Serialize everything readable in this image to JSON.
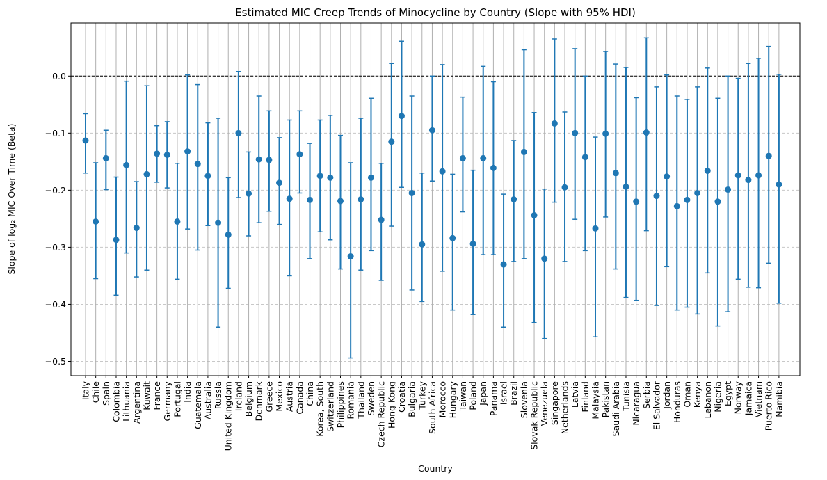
{
  "chart_data": {
    "type": "errorbar",
    "title": "Estimated MIC Creep Trends of Minocycline by Country (Slope with 95% HDI)",
    "xlabel": "Country",
    "ylabel": "Slope of log₂ MIC Over Time (Beta)",
    "ylim": [
      -0.525,
      0.093
    ],
    "yticks": [
      0.0,
      -0.1,
      -0.2,
      -0.3,
      -0.4,
      -0.5
    ],
    "ytick_labels": [
      "0.0",
      "−0.1",
      "−0.2",
      "−0.3",
      "−0.4",
      "−0.5"
    ],
    "reference_line": 0.0,
    "grid": true,
    "color": "#1f77b4",
    "categories": [
      "Italy",
      "Chile",
      "Spain",
      "Colombia",
      "Lithuania",
      "Argentina",
      "Kuwait",
      "France",
      "Germany",
      "Portugal",
      "India",
      "Guatemala",
      "Australia",
      "Russia",
      "United Kingdom",
      "Ireland",
      "Belgium",
      "Denmark",
      "Greece",
      "Mexico",
      "Austria",
      "Canada",
      "China",
      "Korea, South",
      "Switzerland",
      "Philippines",
      "Romania",
      "Thailand",
      "Sweden",
      "Czech Republic",
      "Hong Kong",
      "Croatia",
      "Bulgaria",
      "Turkey",
      "South Africa",
      "Morocco",
      "Hungary",
      "Taiwan",
      "Poland",
      "Japan",
      "Panama",
      "Israel",
      "Brazil",
      "Slovenia",
      "Slovak Republic",
      "Venezuela",
      "Singapore",
      "Netherlands",
      "Latvia",
      "Finland",
      "Malaysia",
      "Pakistan",
      "Saudi Arabia",
      "Tunisia",
      "Nicaragua",
      "Serbia",
      "El Salvador",
      "Jordan",
      "Honduras",
      "Oman",
      "Kenya",
      "Lebanon",
      "Nigeria",
      "Egypt",
      "Norway",
      "Jamaica",
      "Vietnam",
      "Puerto Rico",
      "Namibia"
    ],
    "values": [
      -0.113,
      -0.255,
      -0.144,
      -0.287,
      -0.156,
      -0.266,
      -0.172,
      -0.136,
      -0.138,
      -0.255,
      -0.132,
      -0.154,
      -0.175,
      -0.257,
      -0.278,
      -0.1,
      -0.206,
      -0.146,
      -0.147,
      -0.187,
      -0.215,
      -0.137,
      -0.217,
      -0.175,
      -0.178,
      -0.219,
      -0.316,
      -0.216,
      -0.178,
      -0.252,
      -0.115,
      -0.07,
      -0.205,
      -0.295,
      -0.095,
      -0.167,
      -0.284,
      -0.144,
      -0.294,
      -0.144,
      -0.161,
      -0.33,
      -0.216,
      -0.133,
      -0.244,
      -0.32,
      -0.083,
      -0.195,
      -0.1,
      -0.142,
      -0.267,
      -0.101,
      -0.17,
      -0.194,
      -0.22,
      -0.099,
      -0.21,
      -0.176,
      -0.228,
      -0.217,
      -0.205,
      -0.166,
      -0.22,
      -0.199,
      -0.174,
      -0.182,
      -0.174,
      -0.14,
      -0.19
    ],
    "lower": [
      -0.17,
      -0.355,
      -0.199,
      -0.384,
      -0.31,
      -0.352,
      -0.34,
      -0.186,
      -0.196,
      -0.356,
      -0.268,
      -0.305,
      -0.262,
      -0.44,
      -0.372,
      -0.213,
      -0.28,
      -0.257,
      -0.237,
      -0.26,
      -0.35,
      -0.205,
      -0.32,
      -0.273,
      -0.287,
      -0.338,
      -0.494,
      -0.34,
      -0.306,
      -0.358,
      -0.263,
      -0.195,
      -0.375,
      -0.395,
      -0.184,
      -0.342,
      -0.41,
      -0.238,
      -0.418,
      -0.313,
      -0.313,
      -0.44,
      -0.325,
      -0.32,
      -0.432,
      -0.46,
      -0.221,
      -0.325,
      -0.251,
      -0.306,
      -0.457,
      -0.247,
      -0.338,
      -0.388,
      -0.393,
      -0.271,
      -0.402,
      -0.334,
      -0.41,
      -0.405,
      -0.417,
      -0.345,
      -0.438,
      -0.413,
      -0.356,
      -0.37,
      -0.371,
      -0.328,
      -0.398
    ],
    "upper": [
      -0.066,
      -0.152,
      -0.095,
      -0.177,
      -0.009,
      -0.185,
      -0.017,
      -0.087,
      -0.08,
      -0.153,
      0.002,
      -0.015,
      -0.082,
      -0.074,
      -0.178,
      0.008,
      -0.133,
      -0.035,
      -0.061,
      -0.108,
      -0.077,
      -0.061,
      -0.118,
      -0.077,
      -0.069,
      -0.104,
      -0.152,
      -0.074,
      -0.039,
      -0.153,
      0.022,
      0.061,
      -0.035,
      -0.17,
      0.0,
      0.02,
      -0.172,
      -0.037,
      -0.165,
      0.017,
      -0.01,
      -0.207,
      -0.113,
      0.046,
      -0.064,
      -0.198,
      0.065,
      -0.063,
      0.048,
      0.0,
      -0.107,
      0.043,
      0.021,
      0.015,
      -0.038,
      0.067,
      -0.019,
      0.002,
      -0.035,
      -0.041,
      -0.019,
      0.014,
      -0.039,
      0.0,
      -0.004,
      0.022,
      0.031,
      0.052,
      0.003
    ]
  }
}
